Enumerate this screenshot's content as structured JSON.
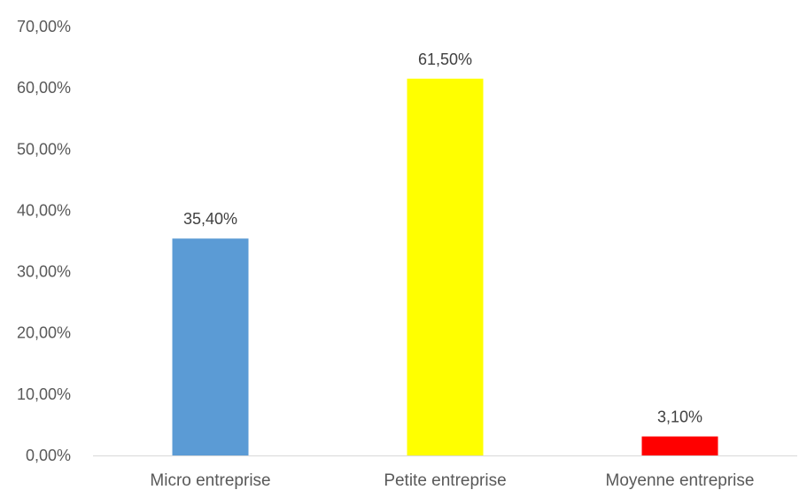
{
  "chart_data": {
    "type": "bar",
    "categories": [
      "Micro entreprise",
      "Petite entreprise",
      "Moyenne entreprise"
    ],
    "values": [
      35.4,
      61.5,
      3.1
    ],
    "value_labels": [
      "35,40%",
      "61,50%",
      "3,10%"
    ],
    "colors": [
      "#5b9bd5",
      "#ffff00",
      "#ff0000"
    ],
    "ylim": [
      0,
      70
    ],
    "yticks": [
      0,
      10,
      20,
      30,
      40,
      50,
      60,
      70
    ],
    "ytick_labels": [
      "0,00%",
      "10,00%",
      "20,00%",
      "30,00%",
      "40,00%",
      "50,00%",
      "60,00%",
      "70,00%"
    ],
    "title": "",
    "xlabel": "",
    "ylabel": "",
    "grid": false,
    "legend": false
  }
}
